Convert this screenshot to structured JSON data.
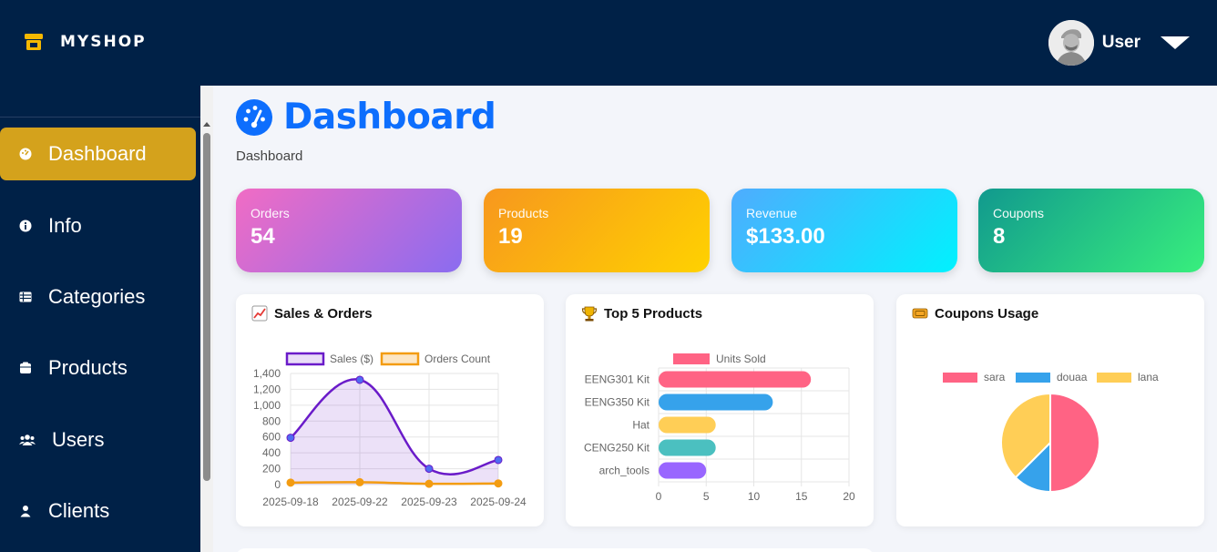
{
  "brand": {
    "name": "MYSHOP",
    "icon": "store-icon",
    "color": "#f5b800"
  },
  "user": {
    "name": "User"
  },
  "sidebar": {
    "items": [
      {
        "label": "Dashboard",
        "icon": "dashboard-icon",
        "active": true
      },
      {
        "label": "Info",
        "icon": "info-icon"
      },
      {
        "label": "Categories",
        "icon": "list-icon"
      },
      {
        "label": "Products",
        "icon": "box-icon"
      },
      {
        "label": "Users",
        "icon": "users-icon"
      },
      {
        "label": "Clients",
        "icon": "user-icon"
      }
    ],
    "active_color": "#d4a21c",
    "background": "#002147"
  },
  "page": {
    "title": "Dashboard",
    "breadcrumb": "Dashboard",
    "accent": "#0d6efd"
  },
  "stats": [
    {
      "label": "Orders",
      "value": "54"
    },
    {
      "label": "Products",
      "value": "19"
    },
    {
      "label": "Revenue",
      "value": "$133.00"
    },
    {
      "label": "Coupons",
      "value": "8"
    }
  ],
  "panels": {
    "sales": {
      "title": "Sales & Orders",
      "icon": "chart-up-icon"
    },
    "top": {
      "title": "Top 5 Products",
      "icon": "trophy-icon"
    },
    "coupons": {
      "title": "Coupons Usage",
      "icon": "ticket-icon"
    }
  },
  "chart_data": [
    {
      "type": "line",
      "x": [
        "2025-09-18",
        "2025-09-22",
        "2025-09-23",
        "2025-09-24"
      ],
      "series": [
        {
          "name": "Sales ($)",
          "values": [
            590,
            1320,
            200,
            310
          ],
          "color": "#6a1bc9",
          "fill": true
        },
        {
          "name": "Orders Count",
          "values": [
            25,
            30,
            10,
            15
          ],
          "color": "#f39c12",
          "fill": false
        }
      ],
      "ylim": [
        0,
        1400
      ],
      "yticks": [
        "0",
        "200",
        "400",
        "600",
        "800",
        "1,000",
        "1,200",
        "1,400"
      ],
      "legend": "top"
    },
    {
      "type": "bar",
      "orientation": "horizontal",
      "categories": [
        "EENG301 Kit",
        "EENG350 Kit",
        "Hat",
        "CENG250 Kit",
        "arch_tools"
      ],
      "series": [
        {
          "name": "Units Sold",
          "values": [
            16,
            12,
            6,
            6,
            5
          ]
        }
      ],
      "colors": [
        "#ff6384",
        "#36a2eb",
        "#ffce56",
        "#4bc0c0",
        "#9966ff"
      ],
      "xlim": [
        0,
        20
      ],
      "xticks": [
        "0",
        "5",
        "10",
        "15",
        "20"
      ],
      "legend": "top"
    },
    {
      "type": "pie",
      "labels": [
        "sara",
        "douaa",
        "lana"
      ],
      "values": [
        4,
        1,
        3
      ],
      "colors": [
        "#ff6384",
        "#36a2eb",
        "#ffce56"
      ],
      "legend": "top"
    }
  ]
}
